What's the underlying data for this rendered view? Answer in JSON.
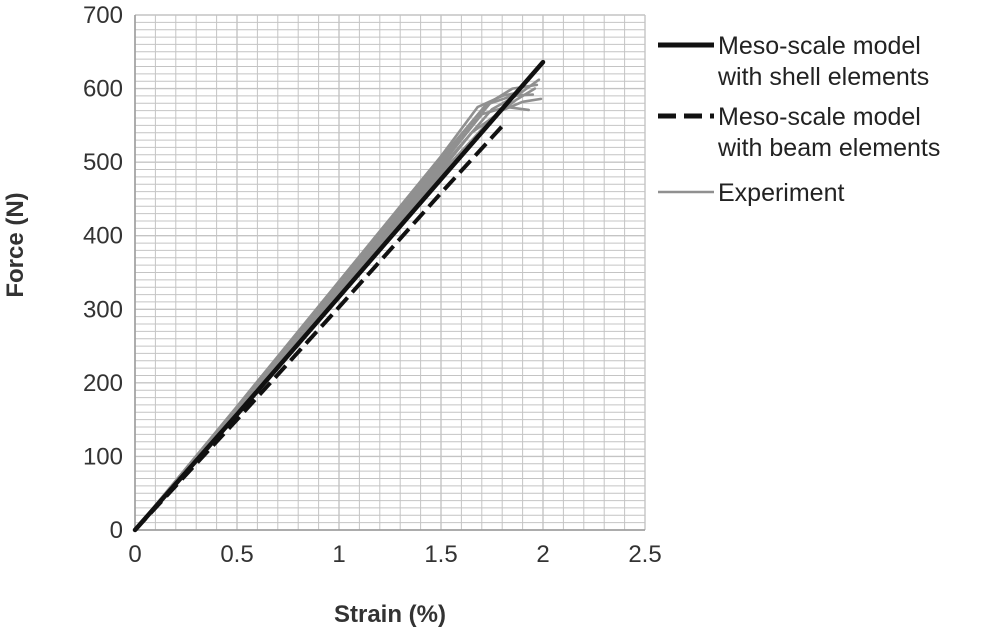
{
  "chart_data": {
    "type": "line",
    "xlabel": "Strain (%)",
    "ylabel": "Force (N)",
    "xlim": [
      0,
      2.5
    ],
    "ylim": [
      0,
      700
    ],
    "x_ticks": [
      "0",
      "0.5",
      "1",
      "1.5",
      "2",
      "2.5"
    ],
    "y_ticks": [
      "0",
      "100",
      "200",
      "300",
      "400",
      "500",
      "600",
      "700"
    ],
    "grid": true,
    "legend_position": "right",
    "series": [
      {
        "name": "Meso-scale model with shell elements",
        "style": "solid",
        "color": "#111111",
        "x": [
          0,
          0.5,
          1.0,
          1.5,
          2.0
        ],
        "y": [
          0,
          157,
          317,
          477,
          636
        ]
      },
      {
        "name": "Meso-scale model with beam elements",
        "style": "dashed",
        "color": "#111111",
        "x": [
          0,
          0.5,
          1.0,
          1.5,
          1.82
        ],
        "y": [
          0,
          150,
          303,
          458,
          555
        ]
      },
      {
        "name": "Experiment",
        "style": "solid",
        "color": "#909090",
        "runs": [
          {
            "x": [
              0,
              0.5,
              1.0,
              1.5,
              1.75,
              1.85,
              1.97
            ],
            "y": [
              0,
              165,
              333,
              500,
              583,
              600,
              605
            ]
          },
          {
            "x": [
              0,
              0.5,
              1.0,
              1.5,
              1.75,
              1.88,
              1.98
            ],
            "y": [
              0,
              162,
              327,
              492,
              572,
              592,
              612
            ]
          },
          {
            "x": [
              0,
              0.5,
              1.0,
              1.5,
              1.72,
              1.85,
              1.95
            ],
            "y": [
              0,
              167,
              335,
              505,
              578,
              590,
              592
            ]
          },
          {
            "x": [
              0,
              0.5,
              1.0,
              1.5,
              1.78,
              1.9,
              1.99
            ],
            "y": [
              0,
              160,
              322,
              485,
              568,
              582,
              586
            ]
          },
          {
            "x": [
              0,
              0.5,
              1.0,
              1.5,
              1.7,
              1.82,
              1.93
            ],
            "y": [
              0,
              163,
              330,
              496,
              565,
              575,
              571
            ]
          },
          {
            "x": [
              0,
              0.5,
              1.0,
              1.5,
              1.74,
              1.87,
              1.96
            ],
            "y": [
              0,
              158,
              318,
              480,
              558,
              585,
              600
            ]
          },
          {
            "x": [
              0,
              0.5,
              1.0,
              1.5,
              1.65,
              1.75
            ],
            "y": [
              0,
              161,
              325,
              488,
              540,
              560
            ]
          },
          {
            "x": [
              0,
              0.5,
              1.0,
              1.5,
              1.68,
              1.8,
              1.9
            ],
            "y": [
              0,
              168,
              338,
              508,
              575,
              590,
              596
            ]
          }
        ]
      }
    ]
  }
}
